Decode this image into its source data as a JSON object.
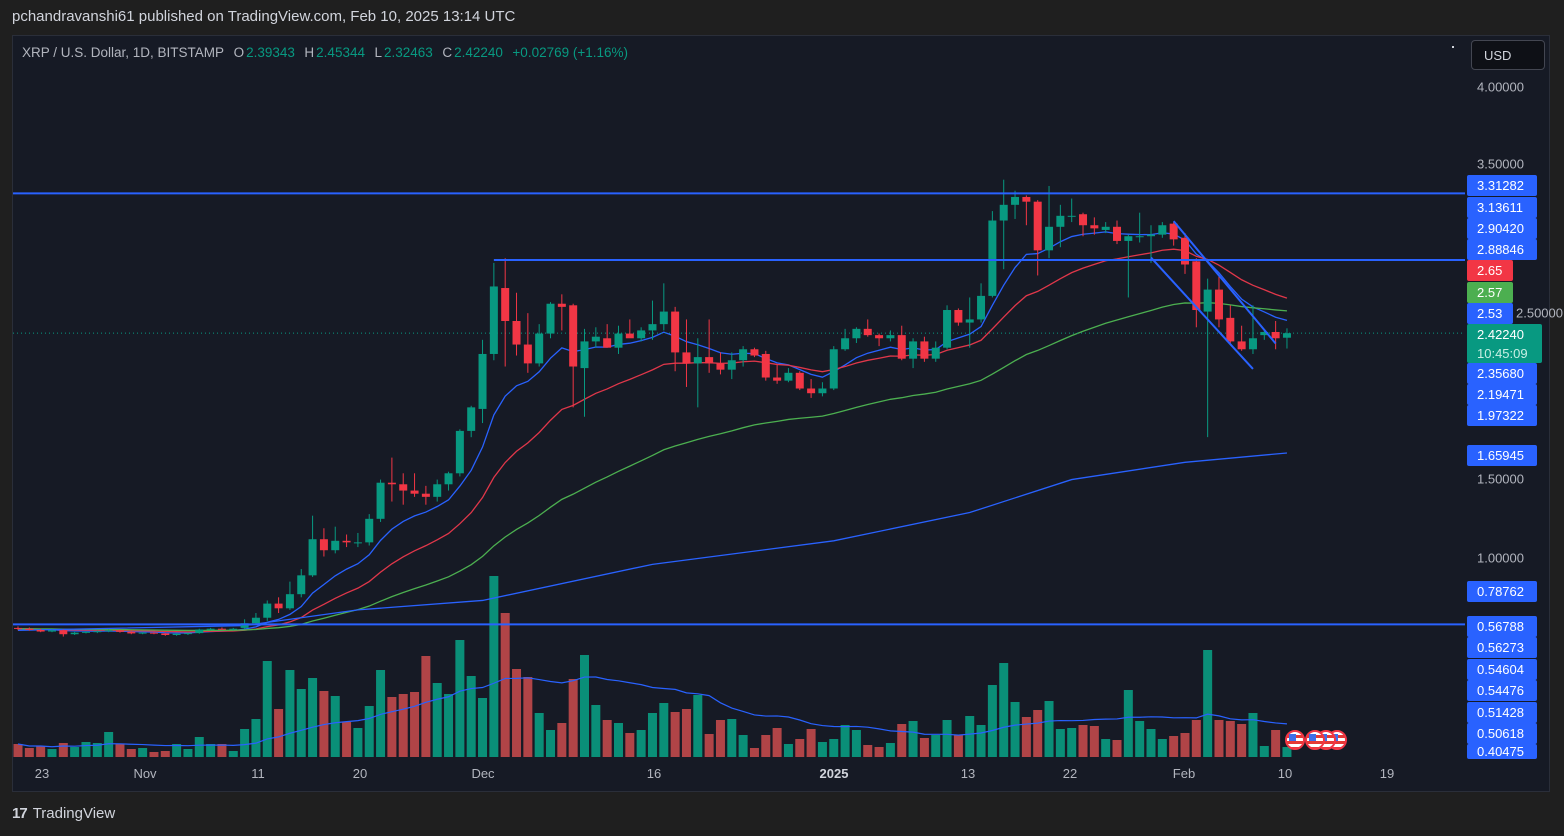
{
  "publish_line": "pchandravanshi61 published on TradingView.com, Feb 10, 2025 13:14 UTC",
  "legend": {
    "symbol": "XRP / U.S. Dollar, 1D, BITSTAMP",
    "o_label": "O",
    "o": "2.39343",
    "h_label": "H",
    "h": "2.45344",
    "l_label": "L",
    "l": "2.32463",
    "c_label": "C",
    "c": "2.42240",
    "change": "+0.02769 (+1.16%)"
  },
  "currency_button": "USD",
  "footer_brand": "TradingView",
  "footer_logo": "17",
  "chart_data": {
    "type": "candlestick",
    "title": "XRP / U.S. Dollar, 1D, BITSTAMP",
    "yaxis_ticks": [
      "4.00000",
      "3.50000",
      "2.50000",
      "1.50000",
      "1.00000"
    ],
    "yaxis_scale": "linear",
    "xaxis_ticks": [
      "23",
      "Nov",
      "11",
      "20",
      "Dec",
      "16",
      "2025",
      "13",
      "22",
      "Feb",
      "10",
      "19"
    ],
    "price_labels": {
      "h_line_top": "3.31282",
      "a": "3.13611",
      "b": "2.90420",
      "c": "2.88846",
      "ema_red": "2.65",
      "ema_green": "2.57",
      "ema_blue": "2.53",
      "last": "2.42240",
      "countdown": "10:45:09",
      "d": "2.35680",
      "e": "2.19471",
      "f": "1.97322",
      "ema_long": "1.65945",
      "g": "0.78762",
      "h_line_bottom": "0.56788",
      "i": "0.56273",
      "j": "0.54604",
      "k": "0.54476",
      "l": "0.51428",
      "m": "0.50618",
      "n": "0.40475"
    },
    "colors": {
      "up": "#089981",
      "down": "#f23645",
      "line_blue": "#2962ff",
      "ema_red": "#f23645",
      "ema_green": "#4caf50",
      "bg": "#161a25"
    },
    "candle_fields": [
      "date",
      "open",
      "high",
      "low",
      "close",
      "volume_relative"
    ],
    "candles": [
      [
        "2024-10-21",
        0.545,
        0.555,
        0.53,
        0.54,
        13
      ],
      [
        "2024-10-22",
        0.54,
        0.548,
        0.528,
        0.532,
        9
      ],
      [
        "2024-10-23",
        0.532,
        0.54,
        0.518,
        0.522,
        11
      ],
      [
        "2024-10-24",
        0.522,
        0.535,
        0.518,
        0.53,
        8
      ],
      [
        "2024-10-25",
        0.53,
        0.535,
        0.49,
        0.505,
        14
      ],
      [
        "2024-10-26",
        0.505,
        0.52,
        0.5,
        0.515,
        10
      ],
      [
        "2024-10-27",
        0.515,
        0.525,
        0.51,
        0.52,
        15
      ],
      [
        "2024-10-28",
        0.52,
        0.528,
        0.512,
        0.524,
        14
      ],
      [
        "2024-10-29",
        0.524,
        0.535,
        0.518,
        0.53,
        25
      ],
      [
        "2024-10-30",
        0.53,
        0.534,
        0.515,
        0.52,
        13
      ],
      [
        "2024-10-31",
        0.52,
        0.525,
        0.505,
        0.51,
        8
      ],
      [
        "2024-11-01",
        0.51,
        0.52,
        0.505,
        0.515,
        9
      ],
      [
        "2024-11-02",
        0.515,
        0.518,
        0.505,
        0.51,
        5
      ],
      [
        "2024-11-03",
        0.51,
        0.514,
        0.495,
        0.5,
        6
      ],
      [
        "2024-11-04",
        0.5,
        0.512,
        0.495,
        0.508,
        13
      ],
      [
        "2024-11-05",
        0.508,
        0.515,
        0.5,
        0.512,
        8
      ],
      [
        "2024-11-06",
        0.512,
        0.54,
        0.508,
        0.535,
        20
      ],
      [
        "2024-11-07",
        0.535,
        0.545,
        0.53,
        0.54,
        13
      ],
      [
        "2024-11-08",
        0.54,
        0.548,
        0.534,
        0.536,
        13
      ],
      [
        "2024-11-09",
        0.536,
        0.545,
        0.53,
        0.54,
        6
      ],
      [
        "2024-11-10",
        0.545,
        0.6,
        0.54,
        0.575,
        28
      ],
      [
        "2024-11-11",
        0.575,
        0.64,
        0.565,
        0.61,
        38
      ],
      [
        "2024-11-12",
        0.61,
        0.72,
        0.59,
        0.7,
        96
      ],
      [
        "2024-11-13",
        0.7,
        0.74,
        0.64,
        0.67,
        48
      ],
      [
        "2024-11-14",
        0.67,
        0.84,
        0.66,
        0.76,
        87
      ],
      [
        "2024-11-15",
        0.76,
        0.92,
        0.74,
        0.88,
        68
      ],
      [
        "2024-11-16",
        0.88,
        1.26,
        0.87,
        1.11,
        79
      ],
      [
        "2024-11-17",
        1.11,
        1.18,
        1.0,
        1.04,
        66
      ],
      [
        "2024-11-18",
        1.04,
        1.19,
        1.02,
        1.1,
        61
      ],
      [
        "2024-11-19",
        1.1,
        1.14,
        1.06,
        1.09,
        35
      ],
      [
        "2024-11-20",
        1.09,
        1.15,
        1.06,
        1.09,
        29
      ],
      [
        "2024-11-21",
        1.09,
        1.27,
        1.07,
        1.24,
        51
      ],
      [
        "2024-11-22",
        1.24,
        1.49,
        1.22,
        1.47,
        87
      ],
      [
        "2024-11-23",
        1.47,
        1.63,
        1.35,
        1.46,
        60
      ],
      [
        "2024-11-24",
        1.46,
        1.53,
        1.33,
        1.42,
        63
      ],
      [
        "2024-11-25",
        1.42,
        1.53,
        1.38,
        1.4,
        65
      ],
      [
        "2024-11-26",
        1.4,
        1.45,
        1.33,
        1.38,
        101
      ],
      [
        "2024-11-27",
        1.38,
        1.49,
        1.35,
        1.46,
        74
      ],
      [
        "2024-11-28",
        1.46,
        1.54,
        1.42,
        1.53,
        63
      ],
      [
        "2024-11-29",
        1.53,
        1.81,
        1.51,
        1.8,
        117
      ],
      [
        "2024-11-30",
        1.8,
        1.96,
        1.76,
        1.95,
        81
      ],
      [
        "2024-12-01",
        1.94,
        2.38,
        1.85,
        2.29,
        59
      ],
      [
        "2024-12-02",
        2.29,
        2.87,
        2.25,
        2.72,
        181
      ],
      [
        "2024-12-03",
        2.71,
        2.9,
        2.21,
        2.5,
        144
      ],
      [
        "2024-12-04",
        2.5,
        2.68,
        2.28,
        2.35,
        88
      ],
      [
        "2024-12-05",
        2.35,
        2.55,
        2.17,
        2.23,
        80
      ],
      [
        "2024-12-06",
        2.23,
        2.48,
        2.21,
        2.42,
        44
      ],
      [
        "2024-12-07",
        2.42,
        2.62,
        2.39,
        2.61,
        27
      ],
      [
        "2024-12-08",
        2.61,
        2.67,
        2.44,
        2.59,
        34
      ],
      [
        "2024-12-09",
        2.6,
        2.61,
        1.95,
        2.21,
        78
      ],
      [
        "2024-12-10",
        2.2,
        2.45,
        1.89,
        2.37,
        102
      ],
      [
        "2024-12-11",
        2.37,
        2.46,
        2.33,
        2.4,
        52
      ],
      [
        "2024-12-12",
        2.39,
        2.48,
        2.33,
        2.33,
        37
      ],
      [
        "2024-12-13",
        2.33,
        2.47,
        2.29,
        2.42,
        34
      ],
      [
        "2024-12-14",
        2.42,
        2.51,
        2.4,
        2.39,
        24
      ],
      [
        "2024-12-15",
        2.39,
        2.46,
        2.37,
        2.44,
        27
      ],
      [
        "2024-12-16",
        2.44,
        2.63,
        2.38,
        2.48,
        44
      ],
      [
        "2024-12-17",
        2.48,
        2.74,
        2.44,
        2.56,
        54
      ],
      [
        "2024-12-18",
        2.56,
        2.59,
        2.18,
        2.3,
        45
      ],
      [
        "2024-12-19",
        2.3,
        2.51,
        2.08,
        2.23,
        48
      ],
      [
        "2024-12-20",
        2.23,
        2.39,
        1.95,
        2.27,
        62
      ],
      [
        "2024-12-21",
        2.27,
        2.51,
        2.17,
        2.23,
        23
      ],
      [
        "2024-12-22",
        2.23,
        2.3,
        2.16,
        2.19,
        37
      ],
      [
        "2024-12-23",
        2.19,
        2.3,
        2.13,
        2.25,
        38
      ],
      [
        "2024-12-24",
        2.25,
        2.34,
        2.21,
        2.32,
        22
      ],
      [
        "2024-12-25",
        2.32,
        2.33,
        2.27,
        2.28,
        9
      ],
      [
        "2024-12-26",
        2.29,
        2.31,
        2.12,
        2.14,
        22
      ],
      [
        "2024-12-27",
        2.14,
        2.22,
        2.1,
        2.12,
        29
      ],
      [
        "2024-12-28",
        2.12,
        2.2,
        2.11,
        2.17,
        13
      ],
      [
        "2024-12-29",
        2.17,
        2.18,
        2.06,
        2.07,
        18
      ],
      [
        "2024-12-30",
        2.07,
        2.13,
        2.01,
        2.04,
        28
      ],
      [
        "2024-12-31",
        2.04,
        2.11,
        2.02,
        2.07,
        15
      ],
      [
        "2025-01-01",
        2.07,
        2.34,
        2.06,
        2.32,
        18
      ],
      [
        "2025-01-02",
        2.32,
        2.45,
        2.31,
        2.39,
        32
      ],
      [
        "2025-01-03",
        2.39,
        2.46,
        2.36,
        2.45,
        27
      ],
      [
        "2025-01-04",
        2.45,
        2.51,
        2.4,
        2.41,
        12
      ],
      [
        "2025-01-05",
        2.41,
        2.42,
        2.34,
        2.39,
        10
      ],
      [
        "2025-01-06",
        2.39,
        2.44,
        2.37,
        2.41,
        14
      ],
      [
        "2025-01-07",
        2.41,
        2.47,
        2.25,
        2.26,
        33
      ],
      [
        "2025-01-08",
        2.26,
        2.39,
        2.2,
        2.37,
        36
      ],
      [
        "2025-01-09",
        2.37,
        2.4,
        2.24,
        2.26,
        19
      ],
      [
        "2025-01-10",
        2.26,
        2.37,
        2.24,
        2.33,
        22
      ],
      [
        "2025-01-11",
        2.33,
        2.6,
        2.32,
        2.57,
        37
      ],
      [
        "2025-01-12",
        2.57,
        2.58,
        2.47,
        2.49,
        22
      ],
      [
        "2025-01-13",
        2.49,
        2.65,
        2.33,
        2.51,
        41
      ],
      [
        "2025-01-14",
        2.51,
        2.74,
        2.49,
        2.66,
        32
      ],
      [
        "2025-01-15",
        2.66,
        3.2,
        2.65,
        3.14,
        72
      ],
      [
        "2025-01-16",
        3.14,
        3.4,
        2.83,
        3.24,
        94
      ],
      [
        "2025-01-17",
        3.24,
        3.33,
        3.15,
        3.29,
        55
      ],
      [
        "2025-01-18",
        3.29,
        3.3,
        3.11,
        3.26,
        40
      ],
      [
        "2025-01-19",
        3.26,
        3.27,
        2.79,
        2.95,
        47
      ],
      [
        "2025-01-20",
        2.95,
        3.36,
        2.9,
        3.1,
        56
      ],
      [
        "2025-01-21",
        3.1,
        3.24,
        2.97,
        3.17,
        28
      ],
      [
        "2025-01-22",
        3.17,
        3.28,
        3.13,
        3.17,
        29
      ],
      [
        "2025-01-23",
        3.18,
        3.19,
        3.04,
        3.11,
        32
      ],
      [
        "2025-01-24",
        3.11,
        3.16,
        3.05,
        3.09,
        31
      ],
      [
        "2025-01-25",
        3.08,
        3.13,
        3.06,
        3.1,
        18
      ],
      [
        "2025-01-26",
        3.1,
        3.14,
        2.99,
        3.01,
        17
      ],
      [
        "2025-01-27",
        3.01,
        3.05,
        2.65,
        3.04,
        67
      ],
      [
        "2025-01-28",
        3.04,
        3.19,
        3.0,
        3.04,
        36
      ],
      [
        "2025-01-29",
        3.04,
        3.11,
        2.87,
        3.05,
        28
      ],
      [
        "2025-01-30",
        3.05,
        3.13,
        3.03,
        3.11,
        18
      ],
      [
        "2025-01-31",
        3.12,
        3.13,
        2.98,
        3.02,
        21
      ],
      [
        "2025-02-01",
        3.03,
        3.06,
        2.8,
        2.86,
        24
      ],
      [
        "2025-02-02",
        2.88,
        2.9,
        2.46,
        2.57,
        37
      ],
      [
        "2025-02-03",
        2.56,
        2.77,
        1.76,
        2.7,
        107
      ],
      [
        "2025-02-04",
        2.7,
        2.79,
        2.46,
        2.51,
        37
      ],
      [
        "2025-02-05",
        2.52,
        2.6,
        2.36,
        2.37,
        36
      ],
      [
        "2025-02-06",
        2.37,
        2.47,
        2.31,
        2.32,
        33
      ],
      [
        "2025-02-07",
        2.32,
        2.6,
        2.29,
        2.39,
        44
      ],
      [
        "2025-02-08",
        2.41,
        2.44,
        2.38,
        2.43,
        11
      ],
      [
        "2025-02-09",
        2.43,
        2.5,
        2.32,
        2.39,
        27
      ],
      [
        "2025-02-10",
        2.39343,
        2.45344,
        2.32463,
        2.4224,
        10
      ]
    ],
    "ema_periods": {
      "blue": 9,
      "red": 20,
      "green": 50
    },
    "long_ma_points": [
      [
        0,
        0.53
      ],
      [
        20,
        0.56
      ],
      [
        30,
        0.66
      ],
      [
        41,
        0.72
      ],
      [
        56,
        0.95
      ],
      [
        72,
        1.1
      ],
      [
        84,
        1.28
      ],
      [
        93,
        1.49
      ],
      [
        103,
        1.6
      ],
      [
        112,
        1.65945
      ]
    ],
    "horizontal_levels": [
      {
        "price": 3.31282,
        "from_index": 0
      },
      {
        "price": 2.88846,
        "from_index": 42
      },
      {
        "price": 0.56788,
        "from_index": 0
      }
    ],
    "trend_lines": [
      {
        "from_index": 100,
        "from_price": 2.9042,
        "to_index": 109,
        "to_price": 2.19471
      },
      {
        "from_index": 102,
        "from_price": 3.13611,
        "to_index": 111,
        "to_price": 2.3568
      }
    ],
    "volume_ma_period": 20,
    "event_markers": 4
  }
}
